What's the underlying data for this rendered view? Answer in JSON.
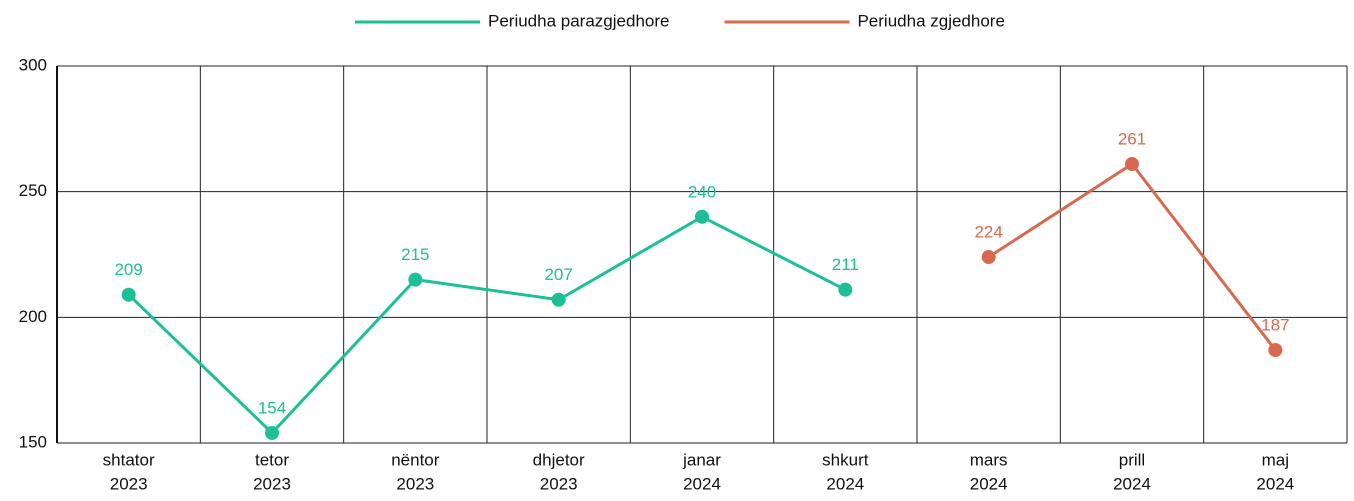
{
  "chart_data": {
    "type": "line",
    "categories": [
      [
        "shtator",
        "2023"
      ],
      [
        "tetor",
        "2023"
      ],
      [
        "nëntor",
        "2023"
      ],
      [
        "dhjetor",
        "2023"
      ],
      [
        "janar",
        "2024"
      ],
      [
        "shkurt",
        "2024"
      ],
      [
        "mars",
        "2024"
      ],
      [
        "prill",
        "2024"
      ],
      [
        "maj",
        "2024"
      ]
    ],
    "series": [
      {
        "name": "Periudha parazgjedhore",
        "color": "#1dbf96",
        "values": [
          209,
          154,
          215,
          207,
          240,
          211,
          null,
          null,
          null
        ]
      },
      {
        "name": "Periudha zgjedhore",
        "color": "#d8694f",
        "values": [
          null,
          null,
          null,
          null,
          null,
          null,
          224,
          261,
          187
        ]
      }
    ],
    "ylim": [
      150,
      300
    ],
    "yticks": [
      150,
      200,
      250,
      300
    ],
    "grid": true,
    "legend": "top"
  }
}
